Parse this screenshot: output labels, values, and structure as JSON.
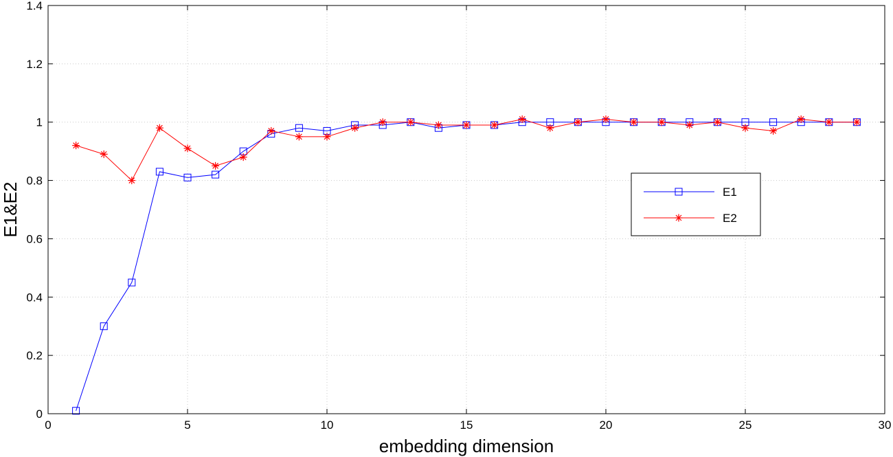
{
  "chart_data": {
    "type": "line",
    "xlabel": "embedding dimension",
    "ylabel": "E1&E2",
    "xlim": [
      0,
      30
    ],
    "ylim": [
      0,
      1.4
    ],
    "xticks": [
      0,
      5,
      10,
      15,
      20,
      25,
      30
    ],
    "yticks": [
      0,
      0.2,
      0.4,
      0.6,
      0.8,
      1,
      1.2,
      1.4
    ],
    "xtick_labels": [
      "0",
      "5",
      "10",
      "15",
      "20",
      "25",
      "30"
    ],
    "ytick_labels": [
      "0",
      "0.2",
      "0.4",
      "0.6",
      "0.8",
      "1",
      "1.2",
      "1.4"
    ],
    "grid": true,
    "legend_position": "right",
    "x": [
      1,
      2,
      3,
      4,
      5,
      6,
      7,
      8,
      9,
      10,
      11,
      12,
      13,
      14,
      15,
      16,
      17,
      18,
      19,
      20,
      21,
      22,
      23,
      24,
      25,
      26,
      27,
      28,
      29
    ],
    "series": [
      {
        "name": "E1",
        "color": "#0000ff",
        "marker": "square",
        "values": [
          0.01,
          0.3,
          0.45,
          0.83,
          0.81,
          0.82,
          0.9,
          0.96,
          0.98,
          0.97,
          0.99,
          0.99,
          1.0,
          0.98,
          0.99,
          0.99,
          1.0,
          1.0,
          1.0,
          1.0,
          1.0,
          1.0,
          1.0,
          1.0,
          1.0,
          1.0,
          1.0,
          1.0,
          1.0
        ]
      },
      {
        "name": "E2",
        "color": "#ff0000",
        "marker": "asterisk",
        "values": [
          0.92,
          0.89,
          0.8,
          0.98,
          0.91,
          0.85,
          0.88,
          0.97,
          0.95,
          0.95,
          0.98,
          1.0,
          1.0,
          0.99,
          0.99,
          0.99,
          1.01,
          0.98,
          1.0,
          1.01,
          1.0,
          1.0,
          0.99,
          1.0,
          0.98,
          0.97,
          1.01,
          1.0,
          1.0
        ]
      }
    ]
  }
}
